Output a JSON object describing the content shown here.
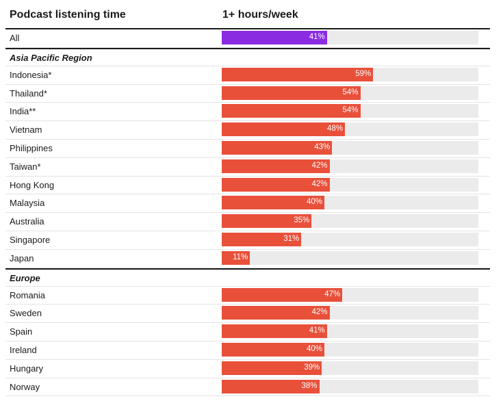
{
  "chart_data": {
    "type": "bar",
    "orientation": "horizontal",
    "title": "",
    "column_headers": {
      "category": "Podcast listening time",
      "value": "1+ hours/week"
    },
    "xlim": [
      0,
      100
    ],
    "value_format": "percent",
    "colors": {
      "overall": "#8a2be2",
      "group": "#e8503a",
      "track": "#ebebeb"
    },
    "overall": {
      "label": "All",
      "value": 41
    },
    "groups": [
      {
        "name": "Asia Pacific Region",
        "categories": [
          "Indonesia*",
          "Thailand*",
          "India**",
          "Vietnam",
          "Philippines",
          "Taiwan*",
          "Hong Kong",
          "Malaysia",
          "Australia",
          "Singapore",
          "Japan"
        ],
        "values": [
          59,
          54,
          54,
          48,
          43,
          42,
          42,
          40,
          35,
          31,
          11
        ]
      },
      {
        "name": "Europe",
        "categories": [
          "Romania",
          "Sweden",
          "Spain",
          "Ireland",
          "Hungary",
          "Norway"
        ],
        "values": [
          47,
          42,
          41,
          40,
          39,
          38
        ]
      }
    ]
  }
}
